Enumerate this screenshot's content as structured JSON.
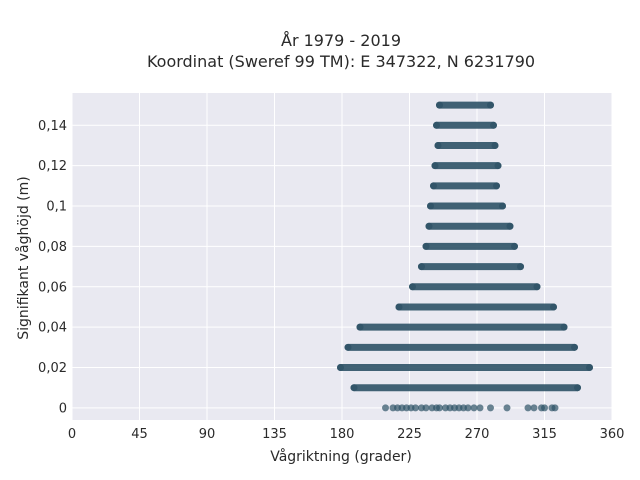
{
  "chart_data": {
    "type": "scatter",
    "title": "År 1979 - 2019",
    "subtitle": "Koordinat (Sweref 99 TM): E 347322, N 6231790",
    "xlabel": "Vågriktning (grader)",
    "ylabel": "Signifikant våghöjd (m)",
    "xlim": [
      0,
      360
    ],
    "ylim": [
      -0.006,
      0.156
    ],
    "x_ticks": [
      0,
      45,
      90,
      135,
      180,
      225,
      270,
      315,
      360
    ],
    "y_ticks": [
      0,
      0.02,
      0.04,
      0.06,
      0.08,
      0.1,
      0.12,
      0.14
    ],
    "y_tick_labels": [
      "0",
      "0,02",
      "0,04",
      "0,06",
      "0,08",
      "0,1",
      "0,12",
      "0,14"
    ],
    "grid": true,
    "marker_color": "#2e5266",
    "plot_background": "#e9e9f1",
    "bands": [
      {
        "y": 0.15,
        "x_min": 245,
        "x_max": 279
      },
      {
        "y": 0.14,
        "x_min": 243,
        "x_max": 281
      },
      {
        "y": 0.13,
        "x_min": 244,
        "x_max": 282
      },
      {
        "y": 0.12,
        "x_min": 242,
        "x_max": 284
      },
      {
        "y": 0.11,
        "x_min": 241,
        "x_max": 283
      },
      {
        "y": 0.1,
        "x_min": 239,
        "x_max": 287
      },
      {
        "y": 0.09,
        "x_min": 238,
        "x_max": 292
      },
      {
        "y": 0.08,
        "x_min": 236,
        "x_max": 295
      },
      {
        "y": 0.07,
        "x_min": 233,
        "x_max": 299
      },
      {
        "y": 0.06,
        "x_min": 227,
        "x_max": 310
      },
      {
        "y": 0.05,
        "x_min": 218,
        "x_max": 321
      },
      {
        "y": 0.04,
        "x_min": 192,
        "x_max": 328
      },
      {
        "y": 0.03,
        "x_min": 184,
        "x_max": 335
      },
      {
        "y": 0.02,
        "x_min": 179,
        "x_max": 345
      },
      {
        "y": 0.01,
        "x_min": 188,
        "x_max": 337
      }
    ],
    "points": [
      {
        "x": 209,
        "y": 0
      },
      {
        "x": 214,
        "y": 0
      },
      {
        "x": 217,
        "y": 0
      },
      {
        "x": 220,
        "y": 0
      },
      {
        "x": 223,
        "y": 0
      },
      {
        "x": 226,
        "y": 0
      },
      {
        "x": 229,
        "y": 0
      },
      {
        "x": 233,
        "y": 0
      },
      {
        "x": 236,
        "y": 0
      },
      {
        "x": 240,
        "y": 0
      },
      {
        "x": 243,
        "y": 0
      },
      {
        "x": 245,
        "y": 0
      },
      {
        "x": 249,
        "y": 0
      },
      {
        "x": 252,
        "y": 0
      },
      {
        "x": 255,
        "y": 0
      },
      {
        "x": 258,
        "y": 0
      },
      {
        "x": 261,
        "y": 0
      },
      {
        "x": 264,
        "y": 0
      },
      {
        "x": 268,
        "y": 0
      },
      {
        "x": 272,
        "y": 0
      },
      {
        "x": 279,
        "y": 0
      },
      {
        "x": 290,
        "y": 0
      },
      {
        "x": 304,
        "y": 0
      },
      {
        "x": 308,
        "y": 0
      },
      {
        "x": 313,
        "y": 0
      },
      {
        "x": 315,
        "y": 0
      },
      {
        "x": 320,
        "y": 0
      },
      {
        "x": 322,
        "y": 0
      }
    ]
  }
}
